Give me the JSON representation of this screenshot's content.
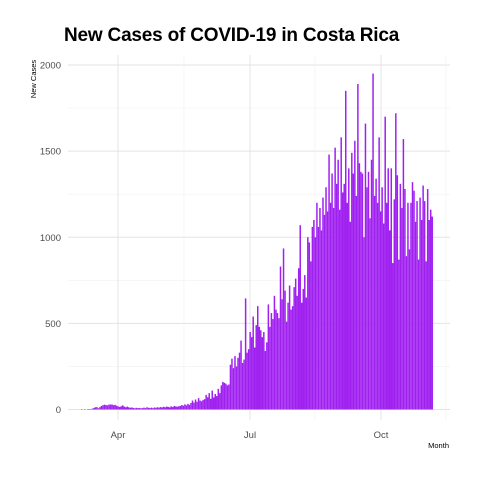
{
  "chart_data": {
    "type": "bar",
    "title": "New Cases of COVID-19 in Costa Rica",
    "xlabel": "Month",
    "ylabel": "New Cases",
    "ylim": [
      0,
      2000
    ],
    "y_ticks": [
      0,
      500,
      1000,
      1500,
      2000
    ],
    "x_tick_labels": [
      "Apr",
      "Jul",
      "Oct"
    ],
    "grid": true,
    "bar_color": "#a020f0",
    "values": [
      1,
      0,
      1,
      0,
      2,
      3,
      2,
      5,
      9,
      13,
      14,
      7,
      14,
      21,
      25,
      28,
      26,
      24,
      29,
      29,
      29,
      25,
      27,
      22,
      18,
      15,
      19,
      24,
      17,
      13,
      17,
      13,
      10,
      12,
      9,
      7,
      10,
      8,
      9,
      7,
      8,
      11,
      8,
      13,
      10,
      9,
      11,
      8,
      12,
      10,
      13,
      11,
      14,
      12,
      16,
      13,
      17,
      15,
      12,
      18,
      14,
      21,
      18,
      16,
      19,
      21,
      26,
      22,
      30,
      24,
      33,
      27,
      38,
      52,
      40,
      58,
      45,
      66,
      52,
      48,
      56,
      60,
      85,
      71,
      95,
      62,
      110,
      70,
      90,
      78,
      120,
      95,
      140,
      160,
      155,
      150,
      140,
      145,
      260,
      295,
      240,
      310,
      250,
      300,
      330,
      400,
      270,
      290,
      645,
      330,
      350,
      450,
      420,
      540,
      360,
      490,
      600,
      480,
      460,
      420,
      450,
      340,
      390,
      610,
      480,
      560,
      525,
      660,
      580,
      560,
      530,
      830,
      640,
      935,
      690,
      510,
      620,
      720,
      580,
      600,
      710,
      760,
      660,
      820,
      1070,
      620,
      700,
      780,
      650,
      1000,
      970,
      860,
      1060,
      1100,
      1000,
      1200,
      1060,
      1170,
      1040,
      1230,
      1130,
      1290,
      1150,
      1480,
      1200,
      1370,
      1170,
      1520,
      1310,
      1450,
      1160,
      1580,
      1260,
      1310,
      1850,
      1200,
      1400,
      1090,
      1490,
      1370,
      1560,
      1240,
      1890,
      1430,
      1380,
      1370,
      1000,
      1660,
      1290,
      1380,
      1110,
      1450,
      1950,
      1240,
      1340,
      1200,
      1580,
      1150,
      1290,
      1080,
      1700,
      1200,
      1400,
      1040,
      1400,
      850,
      1220,
      1720,
      1360,
      870,
      1310,
      1170,
      1570,
      1280,
      890,
      1200,
      930,
      1200,
      1320,
      1270,
      1090,
      1210,
      870,
      1230,
      1100,
      1300,
      1210,
      860,
      1280,
      1100,
      1160,
      1120
    ]
  }
}
